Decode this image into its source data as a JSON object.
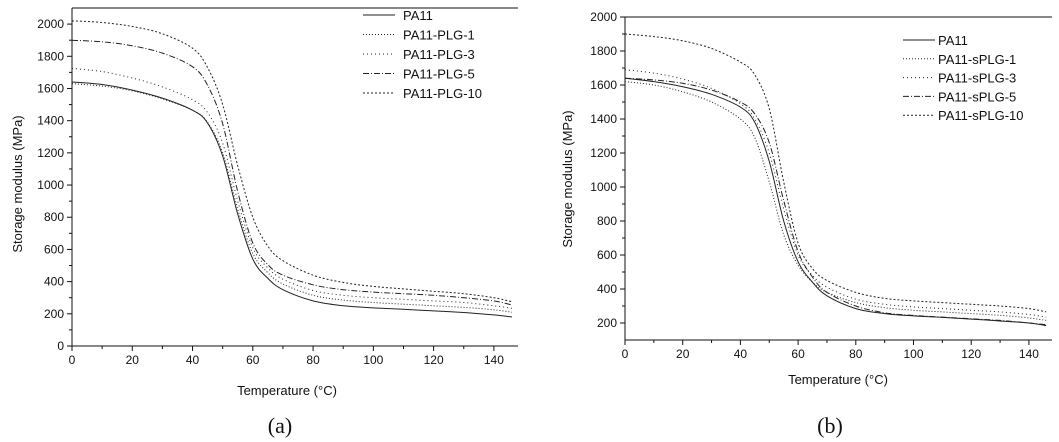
{
  "colors": {
    "axis": "#111111",
    "series": "#222222",
    "background": "#ffffff"
  },
  "chart_data": [
    {
      "type": "line",
      "panel_label": "(a)",
      "xlabel": "Temperature (°C)",
      "ylabel": "Storage modulus (MPa)",
      "xlim": [
        0,
        148
      ],
      "ylim": [
        0,
        2100
      ],
      "xticks": [
        0,
        20,
        40,
        60,
        80,
        100,
        120,
        140
      ],
      "yticks": [
        0,
        200,
        400,
        600,
        800,
        1000,
        1200,
        1400,
        1600,
        1800,
        2000
      ],
      "grid": false,
      "legend_position": "top-right",
      "series": [
        {
          "name": "PA11",
          "dash": "solid",
          "x": [
            0,
            10,
            20,
            30,
            40,
            45,
            50,
            55,
            60,
            65,
            70,
            80,
            90,
            100,
            110,
            120,
            130,
            140,
            146
          ],
          "y": [
            1640,
            1625,
            1590,
            1540,
            1465,
            1385,
            1180,
            820,
            540,
            420,
            350,
            280,
            250,
            237,
            228,
            218,
            208,
            193,
            180
          ]
        },
        {
          "name": "PA11-PLG-1",
          "dash": "1,2",
          "x": [
            0,
            10,
            20,
            30,
            40,
            45,
            50,
            55,
            60,
            65,
            70,
            80,
            90,
            100,
            110,
            120,
            130,
            140,
            146
          ],
          "y": [
            1630,
            1615,
            1585,
            1535,
            1465,
            1390,
            1200,
            850,
            575,
            455,
            385,
            315,
            285,
            270,
            260,
            250,
            240,
            225,
            210
          ]
        },
        {
          "name": "PA11-PLG-3",
          "dash": "1,3",
          "x": [
            0,
            10,
            20,
            30,
            40,
            45,
            50,
            55,
            60,
            65,
            70,
            80,
            90,
            100,
            110,
            120,
            130,
            140,
            146
          ],
          "y": [
            1725,
            1705,
            1665,
            1610,
            1530,
            1450,
            1260,
            900,
            610,
            485,
            415,
            345,
            315,
            300,
            290,
            280,
            270,
            250,
            235
          ]
        },
        {
          "name": "PA11-PLG-5",
          "dash": "6,2,1,2",
          "x": [
            0,
            10,
            20,
            30,
            40,
            45,
            50,
            55,
            60,
            65,
            70,
            80,
            90,
            100,
            110,
            120,
            130,
            140,
            146
          ],
          "y": [
            1900,
            1890,
            1865,
            1820,
            1735,
            1620,
            1380,
            960,
            640,
            505,
            440,
            380,
            350,
            335,
            325,
            315,
            300,
            280,
            255
          ]
        },
        {
          "name": "PA11-PLG-10",
          "dash": "2,2",
          "x": [
            0,
            10,
            20,
            30,
            40,
            45,
            50,
            55,
            60,
            65,
            70,
            80,
            90,
            100,
            110,
            120,
            130,
            140,
            146
          ],
          "y": [
            2020,
            2010,
            1985,
            1940,
            1850,
            1730,
            1500,
            1120,
            800,
            620,
            530,
            440,
            395,
            370,
            355,
            340,
            325,
            300,
            275
          ]
        }
      ]
    },
    {
      "type": "line",
      "panel_label": "(b)",
      "xlabel": "Temperature (°C)",
      "ylabel": "Storage modulus (MPa)",
      "xlim": [
        0,
        148
      ],
      "ylim": [
        100,
        2000
      ],
      "xticks": [
        0,
        20,
        40,
        60,
        80,
        100,
        120,
        140
      ],
      "yticks": [
        200,
        400,
        600,
        800,
        1000,
        1200,
        1400,
        1600,
        1800,
        2000
      ],
      "grid": false,
      "legend_position": "top-right",
      "series": [
        {
          "name": "PA11",
          "dash": "solid",
          "x": [
            0,
            10,
            20,
            30,
            40,
            45,
            50,
            55,
            60,
            65,
            70,
            80,
            90,
            100,
            110,
            120,
            130,
            140,
            146
          ],
          "y": [
            1640,
            1620,
            1590,
            1545,
            1470,
            1380,
            1150,
            800,
            560,
            440,
            360,
            285,
            255,
            242,
            233,
            223,
            212,
            200,
            185
          ]
        },
        {
          "name": "PA11-sPLG-1",
          "dash": "1,2",
          "x": [
            0,
            10,
            20,
            30,
            40,
            45,
            50,
            55,
            60,
            65,
            70,
            80,
            90,
            100,
            110,
            120,
            130,
            140,
            146
          ],
          "y": [
            1620,
            1600,
            1560,
            1500,
            1400,
            1290,
            1030,
            720,
            540,
            440,
            380,
            320,
            290,
            275,
            265,
            255,
            245,
            230,
            215
          ]
        },
        {
          "name": "PA11-sPLG-3",
          "dash": "1,3",
          "x": [
            0,
            10,
            20,
            30,
            40,
            45,
            50,
            55,
            60,
            65,
            70,
            80,
            90,
            100,
            110,
            120,
            130,
            140,
            146
          ],
          "y": [
            1690,
            1670,
            1635,
            1580,
            1490,
            1400,
            1200,
            870,
            600,
            480,
            410,
            340,
            310,
            295,
            285,
            275,
            265,
            250,
            235
          ]
        },
        {
          "name": "PA11-sPLG-5",
          "dash": "6,2,1,2",
          "x": [
            0,
            10,
            20,
            30,
            40,
            45,
            50,
            55,
            60,
            65,
            70,
            80,
            90,
            100,
            110,
            120,
            130,
            140,
            146
          ],
          "y": [
            1640,
            1630,
            1610,
            1570,
            1500,
            1430,
            1260,
            920,
            620,
            470,
            380,
            300,
            260,
            245,
            235,
            225,
            215,
            200,
            190
          ]
        },
        {
          "name": "PA11-sPLG-10",
          "dash": "2,2",
          "x": [
            0,
            10,
            20,
            30,
            40,
            45,
            50,
            55,
            60,
            65,
            70,
            80,
            90,
            100,
            110,
            120,
            130,
            140,
            146
          ],
          "y": [
            1900,
            1885,
            1860,
            1815,
            1735,
            1660,
            1460,
            1030,
            670,
            520,
            450,
            380,
            345,
            330,
            320,
            310,
            300,
            285,
            265
          ]
        }
      ]
    }
  ]
}
